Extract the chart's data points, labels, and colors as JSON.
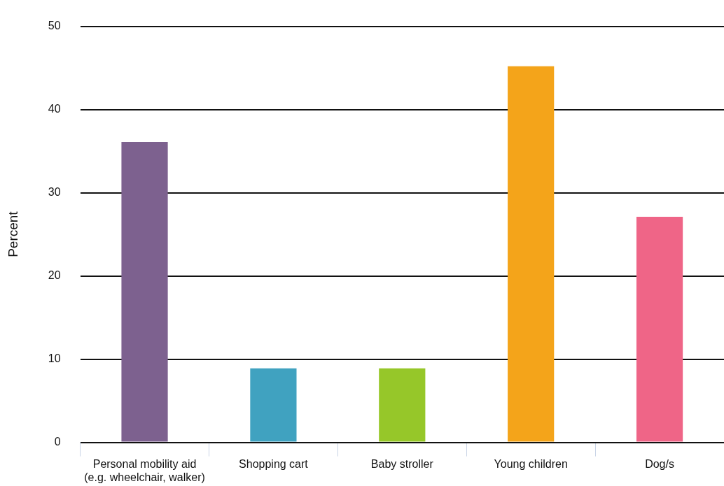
{
  "chart_data": {
    "type": "bar",
    "ylabel": "Percent",
    "categories": [
      "Personal mobility aid (e.g. wheelchair, walker)",
      "Shopping cart",
      "Baby stroller",
      "Young children",
      "Dog/s"
    ],
    "values": [
      36.1,
      8.9,
      8.9,
      45.2,
      27.1
    ],
    "colors": [
      "#7d618f",
      "#40a2c0",
      "#96c729",
      "#f4a41a",
      "#ef6587"
    ],
    "ylim": [
      0,
      50
    ],
    "yticks": [
      0,
      10,
      20,
      30,
      40,
      50
    ],
    "grid": "y",
    "legend": false
  }
}
